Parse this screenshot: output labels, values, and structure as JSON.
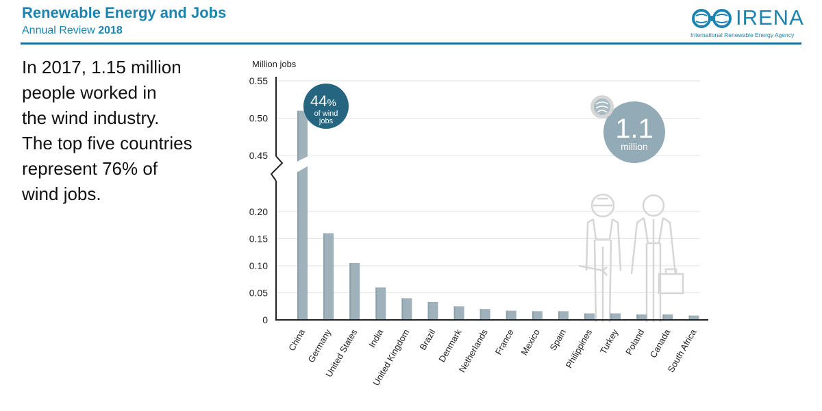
{
  "header": {
    "title": "Renewable Energy and Jobs",
    "subtitle_prefix": "Annual Review",
    "subtitle_year": "2018",
    "logo_text": "IRENA",
    "logo_subtext": "International Renewable Energy Agency"
  },
  "headline_lines": [
    "In 2017, 1.15 million",
    "people worked in",
    "the wind industry.",
    "The top five countries",
    "represent 76% of",
    "wind jobs."
  ],
  "callouts": {
    "share_value": "44",
    "share_unit": "%",
    "share_line1": "of wind",
    "share_line2": "jobs",
    "total_value": "1.1",
    "total_unit": "million"
  },
  "colors": {
    "bar": "#9fb2bb",
    "accent_blue": "#1b84b0",
    "callout_dark": "#25657f",
    "callout_light": "#93abb6"
  },
  "chart_data": {
    "type": "bar",
    "ylabel": "Million jobs",
    "categories": [
      "China",
      "Germany",
      "United States",
      "India",
      "United Kingdom",
      "Brazil",
      "Denmark",
      "Netherlands",
      "France",
      "Mexico",
      "Spain",
      "Philippines",
      "Turkey",
      "Poland",
      "Canada",
      "South Africa"
    ],
    "values": [
      0.51,
      0.16,
      0.105,
      0.06,
      0.04,
      0.033,
      0.025,
      0.02,
      0.017,
      0.016,
      0.016,
      0.012,
      0.012,
      0.01,
      0.01,
      0.008
    ],
    "axis_break": [
      0.22,
      0.43
    ],
    "yticks_lower": [
      "0",
      "0.05",
      "0.10",
      "0.15",
      "0.20"
    ],
    "yticks_upper": [
      "0.45",
      "0.50",
      "0.55"
    ],
    "ylim": [
      0,
      0.55
    ],
    "grid": true
  }
}
